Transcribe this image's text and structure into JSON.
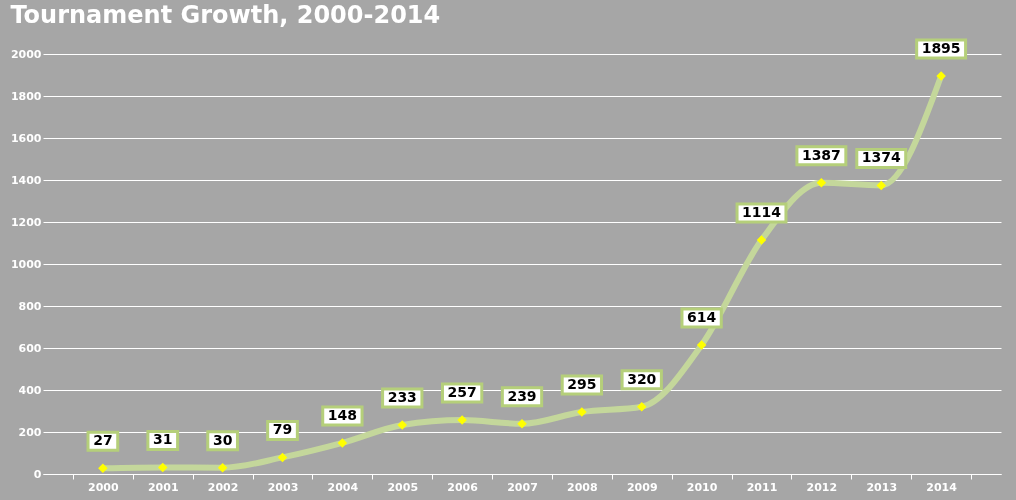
{
  "chart_data": {
    "type": "line",
    "title": "Tournament Growth, 2000-2014",
    "categories": [
      "2000",
      "2001",
      "2002",
      "2003",
      "2004",
      "2005",
      "2006",
      "2007",
      "2008",
      "2009",
      "2010",
      "2011",
      "2012",
      "2013",
      "2014"
    ],
    "series": [
      {
        "color": "#c4d79b",
        "values": [
          27,
          31,
          30,
          79,
          148,
          233,
          257,
          239,
          295,
          320,
          614,
          1114,
          1387,
          1374,
          1895
        ]
      }
    ],
    "ylim": [
      0,
      2000
    ],
    "yticks": [
      0,
      200,
      400,
      600,
      800,
      1000,
      1200,
      1400,
      1600,
      1800,
      2000
    ],
    "grid": "y",
    "marker": "diamond",
    "line_style": "solid",
    "data_labels": true
  }
}
